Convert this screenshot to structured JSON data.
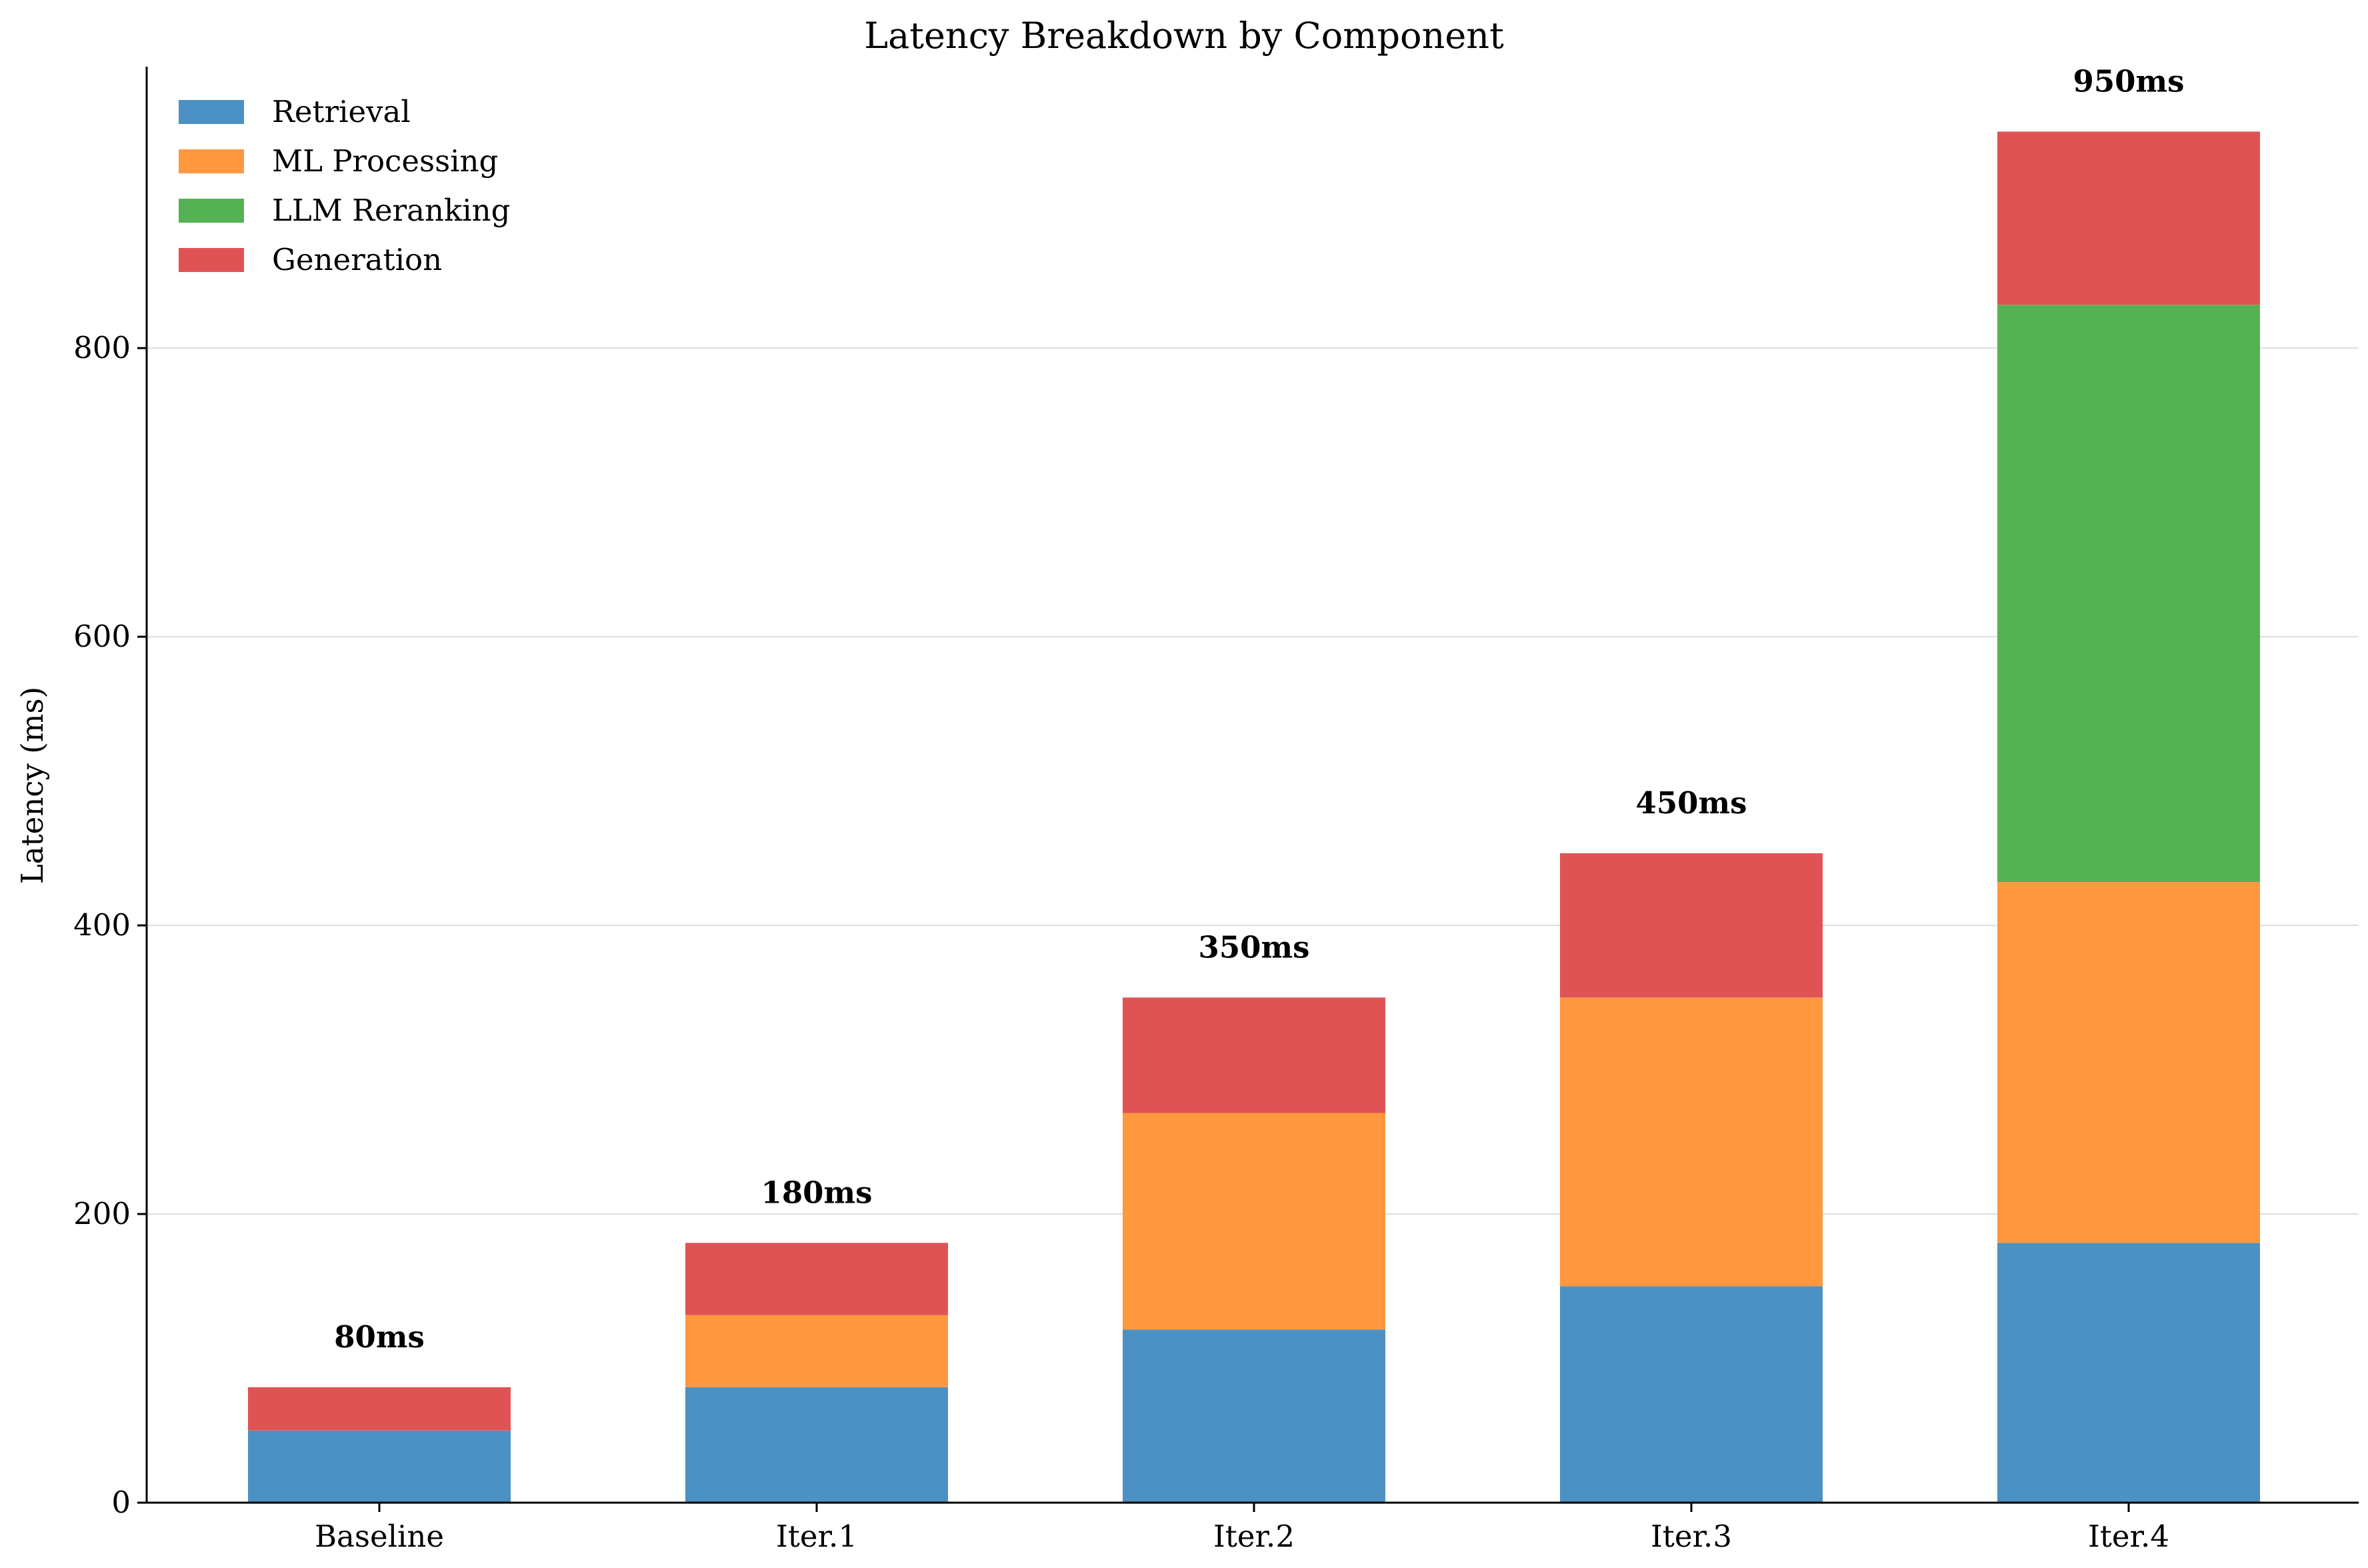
{
  "chart_data": {
    "type": "bar",
    "stacked": true,
    "title": "Latency Breakdown by Component",
    "xlabel": "",
    "ylabel": "Latency (ms)",
    "categories": [
      "Baseline",
      "Iter.1",
      "Iter.2",
      "Iter.3",
      "Iter.4"
    ],
    "series": [
      {
        "name": "Retrieval",
        "color": "#4C91C3",
        "values": [
          50,
          80,
          120,
          150,
          180
        ]
      },
      {
        "name": "ML Processing",
        "color": "#FF983F",
        "values": [
          0,
          50,
          150,
          200,
          250
        ]
      },
      {
        "name": "LLM Reranking",
        "color": "#54B254",
        "values": [
          0,
          0,
          0,
          0,
          400
        ]
      },
      {
        "name": "Generation",
        "color": "#E05355",
        "values": [
          30,
          50,
          80,
          100,
          120
        ]
      }
    ],
    "totals": [
      "80ms",
      "180ms",
      "350ms",
      "450ms",
      "950ms"
    ],
    "ylim": [
      0,
      995
    ],
    "yticks": [
      0,
      200,
      400,
      600,
      800
    ],
    "grid": "horizontal",
    "legend_position": "top-left",
    "axis_color": "#000000",
    "grid_color": "#dddddd"
  }
}
